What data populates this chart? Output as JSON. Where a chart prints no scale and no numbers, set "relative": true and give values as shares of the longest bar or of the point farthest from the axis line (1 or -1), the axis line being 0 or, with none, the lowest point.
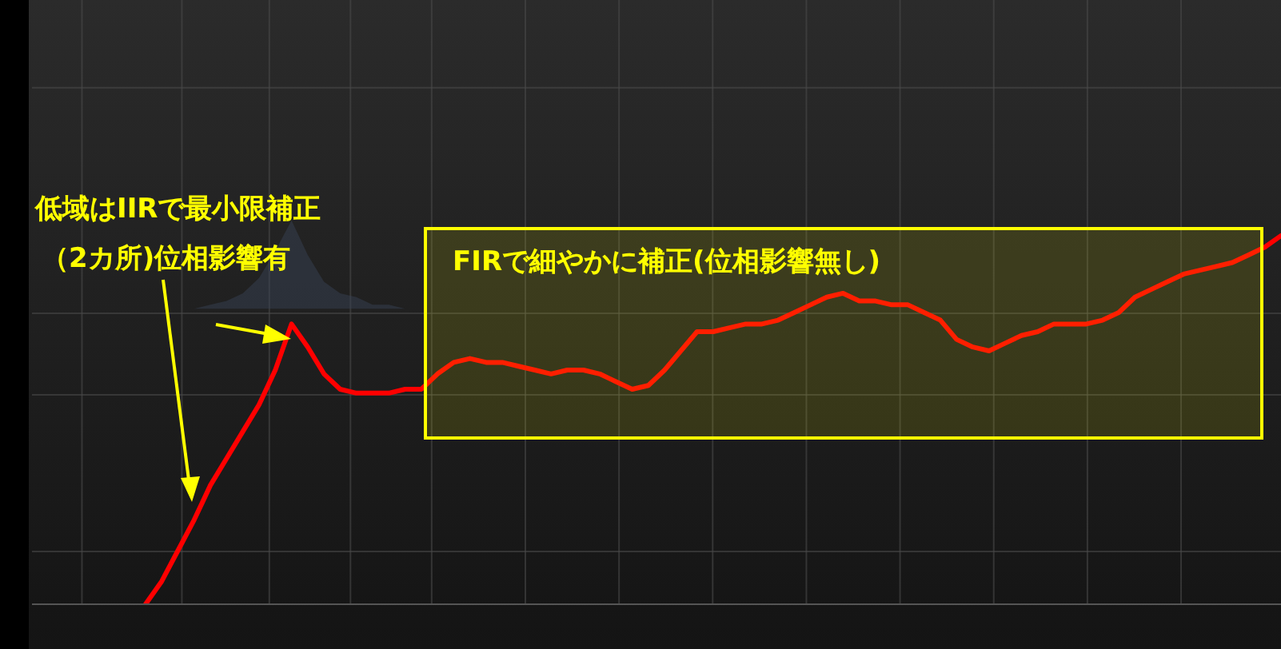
{
  "chart_data": {
    "type": "line",
    "relative": true,
    "grid": true,
    "categories": [
      null,
      null,
      null,
      null,
      null,
      null,
      null,
      null,
      null,
      null,
      null,
      null,
      null,
      null,
      null,
      null,
      null,
      null,
      null,
      null,
      null,
      null,
      null,
      null,
      null,
      null,
      null,
      null,
      null,
      null,
      null,
      null,
      null,
      null,
      null,
      null,
      null,
      null,
      null,
      null,
      null,
      null,
      null,
      null,
      null,
      null,
      null,
      null,
      null,
      null,
      null,
      null,
      null,
      null,
      null,
      null,
      null,
      null,
      null,
      null,
      null,
      null,
      null,
      null,
      null,
      null,
      null,
      null,
      null,
      null,
      null,
      null,
      null,
      null,
      null,
      null,
      null,
      null
    ],
    "series": [
      {
        "type": "area",
        "color": "#3a4558",
        "values": [
          null,
          null,
          null,
          null,
          null,
          null,
          null,
          null,
          null,
          null,
          0.77,
          0.78,
          0.79,
          0.81,
          0.85,
          0.92,
          1.0,
          0.91,
          0.84,
          0.81,
          0.8,
          0.78,
          0.78,
          0.77,
          0.77,
          null,
          null,
          null,
          null,
          null,
          null,
          null,
          null,
          null,
          null,
          null,
          null,
          null,
          null,
          null,
          null,
          null,
          null,
          null,
          null,
          null,
          null,
          null,
          null,
          null,
          null,
          null,
          null,
          null,
          null,
          null,
          null,
          null,
          null,
          null,
          null,
          null,
          null,
          null,
          null,
          null,
          null,
          null,
          null,
          null,
          null,
          null,
          null,
          null,
          null,
          null,
          null,
          null
        ]
      },
      {
        "color": "#ff0000",
        "values": [
          null,
          null,
          null,
          null,
          null,
          null,
          null,
          0,
          0.06,
          0.14,
          0.22,
          0.31,
          0.38,
          0.45,
          0.52,
          0.61,
          0.73,
          0.67,
          0.6,
          0.56,
          0.55,
          0.55,
          0.55,
          0.56,
          0.56,
          0.6,
          0.63,
          0.64,
          0.63,
          0.63,
          0.62,
          0.61,
          0.6,
          0.61,
          0.61,
          0.6,
          0.58,
          0.56,
          0.57,
          0.61,
          0.66,
          0.71,
          0.71,
          0.72,
          0.73,
          0.73,
          0.74,
          0.76,
          0.78,
          0.8,
          0.81,
          0.79,
          0.79,
          0.78,
          0.78,
          0.76,
          0.74,
          0.69,
          0.67,
          0.66,
          0.68,
          0.7,
          0.71,
          0.73,
          0.73,
          0.73,
          0.74,
          0.76,
          0.8,
          0.82,
          0.84,
          0.86,
          0.87,
          0.88,
          0.89,
          0.91,
          0.93,
          0.96
        ]
      }
    ],
    "annotations": [
      "低域はIIRで最小限補正",
      "（2カ所)位相影響有",
      "FIRで細やかに補正(位相影響無し)"
    ]
  }
}
